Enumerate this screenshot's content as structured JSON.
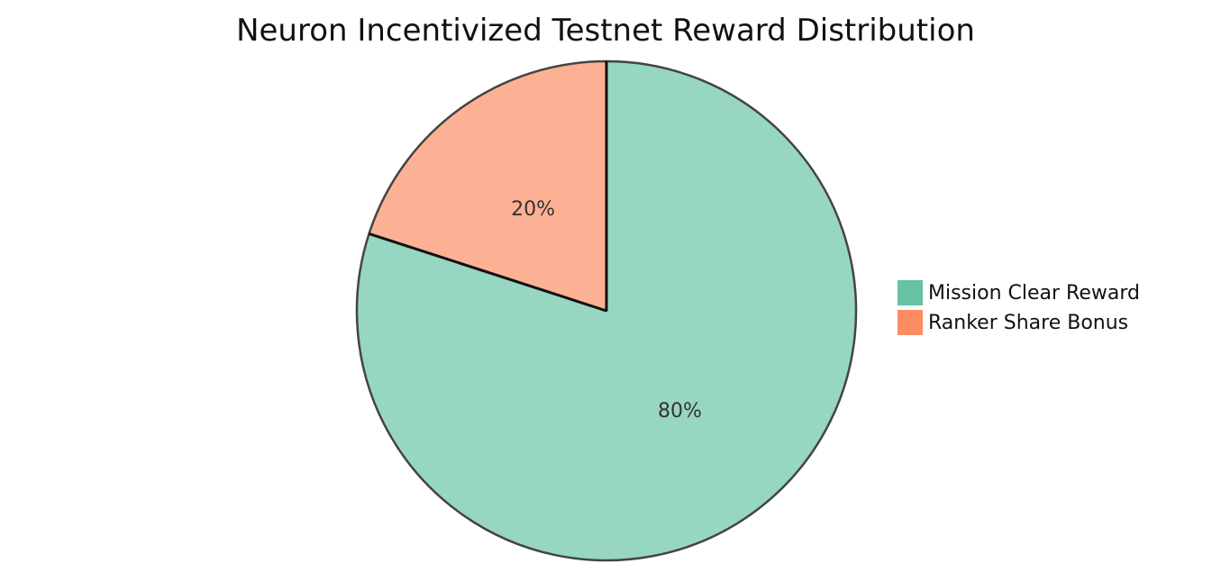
{
  "chart_data": {
    "type": "pie",
    "title": "Neuron Incentivized Testnet Reward Distribution",
    "legend_position": "right",
    "slices": [
      {
        "label": "Mission Clear Reward",
        "value": 80,
        "display": "80%",
        "color": "#66c2a5"
      },
      {
        "label": "Ranker Share Bonus",
        "value": 20,
        "display": "20%",
        "color": "#fc8d62"
      }
    ]
  }
}
